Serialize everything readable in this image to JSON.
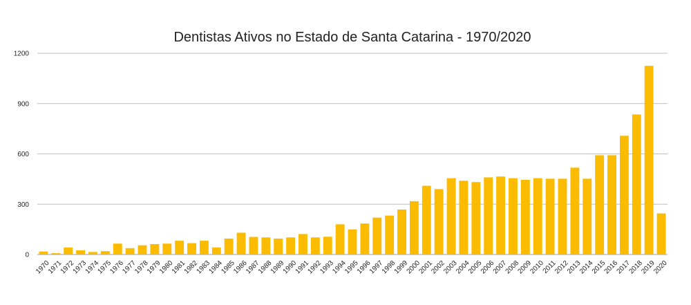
{
  "chart_data": {
    "type": "bar",
    "title": "Dentistas Ativos no Estado de Santa Catarina - 1970/2020",
    "xlabel": "",
    "ylabel": "",
    "ylim": [
      0,
      1200
    ],
    "yticks": [
      0,
      300,
      600,
      900,
      1200
    ],
    "grid": true,
    "legend": "none",
    "bar_color": "#FABB00",
    "categories": [
      "1970",
      "1971",
      "1972",
      "1973",
      "1974",
      "1975",
      "1976",
      "1977",
      "1978",
      "1979",
      "1980",
      "1981",
      "1982",
      "1983",
      "1984",
      "1985",
      "1986",
      "1987",
      "1988",
      "1989",
      "1990",
      "1991",
      "1992",
      "1993",
      "1994",
      "1995",
      "1996",
      "1997",
      "1998",
      "1999",
      "2000",
      "2001",
      "2002",
      "2003",
      "2004",
      "2005",
      "2006",
      "2007",
      "2008",
      "2009",
      "2010",
      "2011",
      "2012",
      "2013",
      "2014",
      "2015",
      "2016",
      "2017",
      "2018",
      "2019",
      "2020"
    ],
    "values": [
      18,
      8,
      42,
      25,
      15,
      20,
      65,
      38,
      55,
      62,
      65,
      82,
      68,
      82,
      42,
      95,
      130,
      105,
      102,
      95,
      102,
      122,
      102,
      106,
      180,
      150,
      185,
      220,
      232,
      268,
      318,
      410,
      390,
      455,
      440,
      432,
      460,
      465,
      455,
      445,
      455,
      452,
      452,
      518,
      452,
      592,
      592,
      708,
      835,
      1125,
      245
    ]
  }
}
